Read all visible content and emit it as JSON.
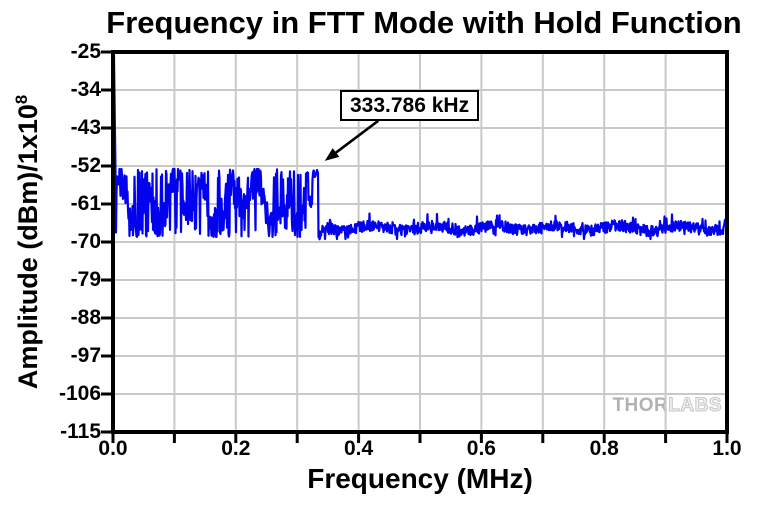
{
  "chart_data": {
    "type": "line",
    "title": "Frequency in FTT Mode with Hold Function",
    "xlabel": "Frequency (MHz)",
    "ylabel_main": "Amplitude (dBm)/1x10",
    "ylabel_exponent": "8",
    "xlim": [
      0.0,
      1.0
    ],
    "ylim": [
      -115,
      -25
    ],
    "x_major_ticks": [
      0.0,
      0.2,
      0.4,
      0.6,
      0.8,
      1.0
    ],
    "x_major_labels": [
      "0.0",
      "0.2",
      "0.4",
      "0.6",
      "0.8",
      "1.0"
    ],
    "x_minor_ticks": [
      0.1,
      0.3,
      0.5,
      0.7,
      0.9
    ],
    "y_ticks": [
      -25,
      -34,
      -43,
      -52,
      -61,
      -70,
      -79,
      -88,
      -97,
      -106,
      -115
    ],
    "grid": {
      "on": true,
      "x_step": 0.1,
      "y_step": 9,
      "color": "#c9c9c9"
    },
    "legend": {
      "visible": false
    },
    "series_color": "#0202ee",
    "frame_color": "#000000",
    "annotation": {
      "text": "333.786 kHz",
      "box_x": 0.3697,
      "box_y": -34.0,
      "arrow_from": [
        0.432,
        -41.3
      ],
      "arrow_to": [
        0.345,
        -50.8
      ]
    },
    "trace": {
      "name": "held FFT spectrum",
      "seed": 20240331,
      "keypoints": [
        [
          0.0,
          -25.0
        ],
        [
          0.003,
          -53.5
        ],
        [
          0.02,
          -60.0
        ],
        [
          0.05,
          -57.0
        ],
        [
          0.08,
          -65.0
        ],
        [
          0.1,
          -56.0
        ],
        [
          0.14,
          -53.5
        ],
        [
          0.17,
          -64.0
        ],
        [
          0.2,
          -56.0
        ],
        [
          0.23,
          -67.0
        ],
        [
          0.26,
          -53.5
        ],
        [
          0.29,
          -61.0
        ],
        [
          0.305,
          -54.0
        ],
        [
          0.318,
          -62.0
        ],
        [
          0.326,
          -54.0
        ],
        [
          0.3338,
          -53.3
        ],
        [
          0.337,
          -68.5
        ],
        [
          0.4,
          -66.8
        ],
        [
          0.5,
          -66.5
        ],
        [
          0.6,
          -66.8
        ],
        [
          0.7,
          -66.4
        ],
        [
          0.8,
          -66.9
        ],
        [
          0.9,
          -66.6
        ],
        [
          0.99,
          -65.5
        ],
        [
          1.0,
          -63.3
        ]
      ],
      "segments": {
        "spike": {
          "x_start": 0.0,
          "start_level": -57,
          "x_peak": 0.0015,
          "peak_level": -25,
          "x_end": 0.004,
          "end_level": -53.5
        },
        "noise_band": {
          "x_end": 0.314,
          "base": -60.5,
          "min": -68.8,
          "max": -52.7,
          "jitter": 9,
          "wave1_amp": 3.6,
          "wave1_freq": 140,
          "wave2_amp": 2.5,
          "wave2_freq": 57
        },
        "final_burst": {
          "x_end": 0.334,
          "level": -54.2,
          "notch_start": 0.318,
          "notch_end": 0.3245,
          "notch_level": -60.5,
          "end_peak": -53.3
        },
        "cliff": {
          "x_end": 0.339,
          "level": -68.4
        },
        "noise_floor": {
          "base": -66.7,
          "min": -69.3,
          "max": -63.6,
          "jitter": 2.6,
          "wave_amp": 0.6,
          "wave_freq": 63,
          "rise_x": 0.994,
          "rise_level": -63.3
        }
      }
    }
  },
  "watermark": {
    "part1": "THOR",
    "part2": "LABS"
  }
}
